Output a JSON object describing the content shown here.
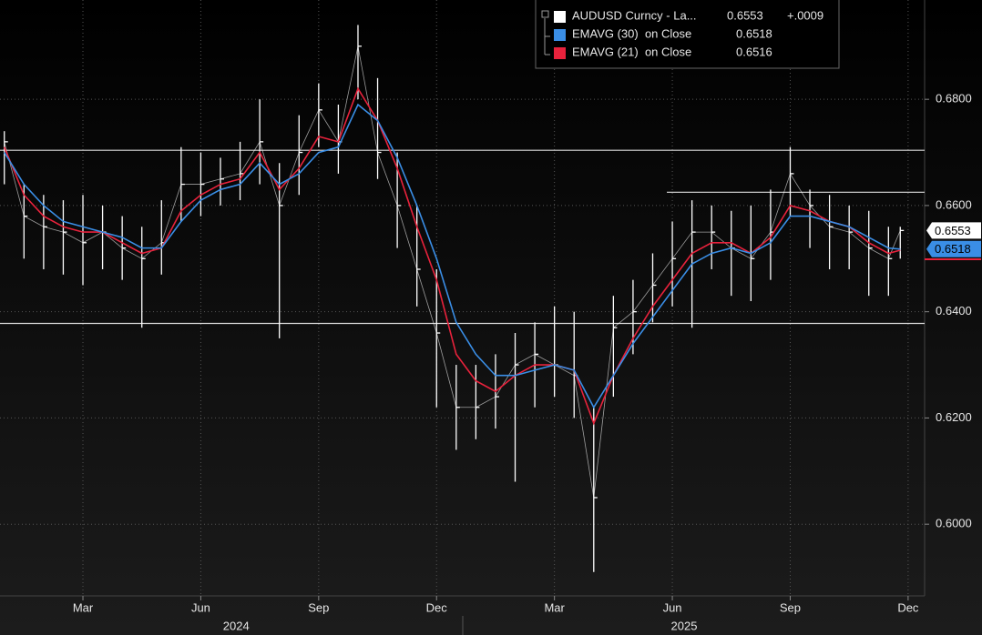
{
  "chart_data": {
    "type": "ohlc",
    "x": [
      0,
      0.5,
      1,
      1.5,
      2,
      2.5,
      3,
      3.5,
      4,
      4.5,
      5,
      5.5,
      6,
      6.5,
      7,
      7.5,
      8,
      8.5,
      9,
      9.5,
      10,
      10.5,
      11,
      11.5,
      12,
      12.5,
      13,
      13.5,
      14,
      14.5,
      15,
      15.5,
      16,
      16.5,
      17,
      17.5,
      18,
      18.5,
      19,
      19.5,
      20,
      20.5,
      21,
      21.5,
      22,
      22.5,
      22.8
    ],
    "xlim": [
      -0.11,
      23.42
    ],
    "xticks": [
      {
        "value": 2,
        "label": "Mar"
      },
      {
        "value": 5,
        "label": "Jun"
      },
      {
        "value": 8,
        "label": "Sep"
      },
      {
        "value": 11,
        "label": "Dec"
      },
      {
        "value": 14,
        "label": "Mar"
      },
      {
        "value": 17,
        "label": "Jun"
      },
      {
        "value": 20,
        "label": "Sep"
      },
      {
        "value": 23,
        "label": "Dec"
      }
    ],
    "year_labels": [
      {
        "value": 5.9,
        "label": "2024"
      },
      {
        "value": 17.3,
        "label": "2025"
      }
    ],
    "ylim": [
      0.5865,
      0.6987
    ],
    "yticks": [
      {
        "value": 0.6,
        "label": "0.6000"
      },
      {
        "value": 0.62,
        "label": "0.6200"
      },
      {
        "value": 0.64,
        "label": "0.6400"
      },
      {
        "value": 0.66,
        "label": "0.6600"
      },
      {
        "value": 0.68,
        "label": "0.6800"
      }
    ],
    "grid": true,
    "levels": [
      {
        "value": 0.6704
      },
      {
        "value": 0.6378
      },
      {
        "value": 0.6625,
        "from": 16.86
      }
    ],
    "series": [
      {
        "name": "AUDUSD Curncy - La...",
        "color": "#ffffff",
        "last": 0.6553,
        "change_label": "+.0009",
        "values": [
          0.672,
          0.658,
          0.656,
          0.655,
          0.653,
          0.655,
          0.652,
          0.65,
          0.653,
          0.664,
          0.664,
          0.665,
          0.666,
          0.672,
          0.66,
          0.67,
          0.678,
          0.672,
          0.69,
          0.67,
          0.66,
          0.648,
          0.636,
          0.622,
          0.622,
          0.624,
          0.63,
          0.632,
          0.63,
          0.628,
          0.605,
          0.637,
          0.64,
          0.645,
          0.65,
          0.655,
          0.655,
          0.652,
          0.65,
          0.655,
          0.666,
          0.66,
          0.656,
          0.655,
          0.652,
          0.65,
          0.6553
        ],
        "high": [
          0.674,
          0.664,
          0.662,
          0.661,
          0.662,
          0.66,
          0.658,
          0.656,
          0.661,
          0.671,
          0.67,
          0.669,
          0.672,
          0.68,
          0.668,
          0.677,
          0.683,
          0.679,
          0.694,
          0.684,
          0.67,
          0.66,
          0.648,
          0.63,
          0.63,
          0.632,
          0.636,
          0.638,
          0.641,
          0.64,
          0.622,
          0.643,
          0.646,
          0.651,
          0.657,
          0.661,
          0.66,
          0.659,
          0.66,
          0.663,
          0.671,
          0.663,
          0.662,
          0.66,
          0.659,
          0.656,
          0.656
        ],
        "low": [
          0.664,
          0.65,
          0.648,
          0.647,
          0.645,
          0.648,
          0.646,
          0.637,
          0.647,
          0.657,
          0.658,
          0.66,
          0.661,
          0.664,
          0.635,
          0.662,
          0.671,
          0.666,
          0.68,
          0.665,
          0.652,
          0.641,
          0.622,
          0.614,
          0.616,
          0.618,
          0.608,
          0.622,
          0.624,
          0.62,
          0.591,
          0.624,
          0.632,
          0.638,
          0.641,
          0.637,
          0.648,
          0.643,
          0.642,
          0.646,
          0.658,
          0.652,
          0.648,
          0.648,
          0.643,
          0.643,
          0.65
        ]
      },
      {
        "name": "EMAVG (30)  on Close",
        "color": "#3a8ee6",
        "last": 0.6518,
        "values": [
          0.67,
          0.664,
          0.66,
          0.657,
          0.656,
          0.655,
          0.654,
          0.652,
          0.652,
          0.657,
          0.661,
          0.663,
          0.664,
          0.668,
          0.664,
          0.666,
          0.67,
          0.671,
          0.679,
          0.676,
          0.669,
          0.66,
          0.65,
          0.638,
          0.632,
          0.628,
          0.628,
          0.629,
          0.63,
          0.629,
          0.622,
          0.628,
          0.634,
          0.639,
          0.644,
          0.649,
          0.651,
          0.652,
          0.651,
          0.653,
          0.658,
          0.658,
          0.657,
          0.656,
          0.654,
          0.652,
          0.6518
        ]
      },
      {
        "name": "EMAVG (21)  on Close",
        "color": "#e8223c",
        "last": 0.6516,
        "values": [
          0.671,
          0.662,
          0.658,
          0.656,
          0.655,
          0.655,
          0.653,
          0.651,
          0.652,
          0.659,
          0.662,
          0.664,
          0.665,
          0.67,
          0.663,
          0.667,
          0.673,
          0.672,
          0.682,
          0.676,
          0.667,
          0.656,
          0.646,
          0.632,
          0.627,
          0.625,
          0.628,
          0.63,
          0.63,
          0.629,
          0.619,
          0.628,
          0.635,
          0.641,
          0.646,
          0.651,
          0.653,
          0.653,
          0.651,
          0.654,
          0.66,
          0.659,
          0.657,
          0.656,
          0.653,
          0.651,
          0.6516
        ]
      }
    ]
  }
}
